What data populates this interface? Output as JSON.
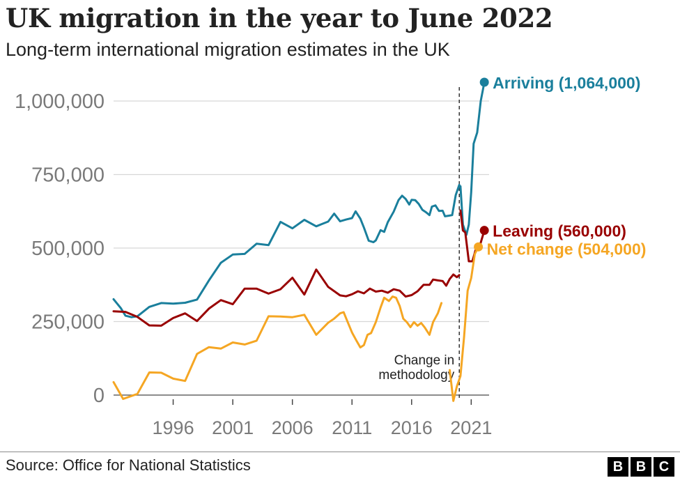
{
  "header": {
    "title": "UK migration in the year to June 2022",
    "subtitle": "Long-term international migration estimates in the UK"
  },
  "footer": {
    "source": "Source: Office for National Statistics",
    "logo_letters": [
      "B",
      "B",
      "C"
    ]
  },
  "chart_data": {
    "type": "line",
    "title": "UK migration in the year to June 2022",
    "subtitle": "Long-term international migration estimates in the UK",
    "xlabel": "",
    "ylabel": "",
    "xlim": [
      1991,
      2022.5
    ],
    "ylim": [
      -60000,
      1064000
    ],
    "grid": true,
    "y_ticks": [
      0,
      250000,
      500000,
      750000,
      1000000
    ],
    "y_tick_labels": [
      "0",
      "250,000",
      "500,000",
      "750,000",
      "1,000,000"
    ],
    "x_ticks": [
      1996,
      2001,
      2006,
      2011,
      2016,
      2021
    ],
    "x_tick_labels": [
      "1996",
      "2001",
      "2006",
      "2011",
      "2016",
      "2021"
    ],
    "annotation": {
      "text_lines": [
        "Change in",
        "methodology"
      ],
      "x": 2020.0
    },
    "series": [
      {
        "name": "Arriving",
        "label": "Arriving (1,064,000)",
        "color": "#1a7f9c",
        "segments": [
          [
            [
              1991,
              326000
            ],
            [
              1991.6,
              296000
            ],
            [
              1992,
              270000
            ],
            [
              1992.5,
              265000
            ],
            [
              1993,
              268000
            ],
            [
              1994,
              300000
            ],
            [
              1995,
              313000
            ],
            [
              1996,
              311000
            ],
            [
              1997,
              314000
            ],
            [
              1998,
              325000
            ],
            [
              1999,
              390000
            ],
            [
              2000,
              450000
            ],
            [
              2001,
              478000
            ],
            [
              2002,
              480000
            ],
            [
              2003,
              515000
            ],
            [
              2004,
              510000
            ],
            [
              2005,
              589000
            ],
            [
              2006,
              567000
            ],
            [
              2007,
              596000
            ],
            [
              2008,
              574000
            ],
            [
              2008.5,
              582000
            ],
            [
              2009,
              590000
            ],
            [
              2009.5,
              617000
            ],
            [
              2010,
              591000
            ],
            [
              2010.5,
              597000
            ],
            [
              2011,
              602000
            ],
            [
              2011.3,
              625000
            ],
            [
              2011.7,
              600000
            ],
            [
              2012,
              570000
            ],
            [
              2012.4,
              525000
            ],
            [
              2012.8,
              520000
            ],
            [
              2013,
              526000
            ],
            [
              2013.4,
              561000
            ],
            [
              2013.7,
              555000
            ],
            [
              2014,
              588000
            ],
            [
              2014.5,
              624000
            ],
            [
              2014.9,
              663000
            ],
            [
              2015.2,
              678000
            ],
            [
              2015.5,
              667000
            ],
            [
              2015.8,
              648000
            ],
            [
              2016,
              664000
            ],
            [
              2016.3,
              663000
            ],
            [
              2016.6,
              650000
            ],
            [
              2016.9,
              630000
            ],
            [
              2017.2,
              622000
            ],
            [
              2017.5,
              612000
            ],
            [
              2017.7,
              641000
            ],
            [
              2018,
              645000
            ],
            [
              2018.3,
              626000
            ],
            [
              2018.6,
              627000
            ],
            [
              2018.8,
              608000
            ],
            [
              2019.1,
              610000
            ],
            [
              2019.4,
              612000
            ],
            [
              2019.7,
              680000
            ],
            [
              2020,
              715000
            ]
          ],
          [
            [
              2020.1,
              710000
            ],
            [
              2020.3,
              580000
            ],
            [
              2020.6,
              545000
            ],
            [
              2020.8,
              580000
            ],
            [
              2021,
              690000
            ],
            [
              2021.2,
              855000
            ],
            [
              2021.5,
              893000
            ],
            [
              2021.8,
              1000000
            ],
            [
              2022.1,
              1064000
            ]
          ]
        ]
      },
      {
        "name": "Leaving",
        "label": "Leaving (560,000)",
        "color": "#990000",
        "segments": [
          [
            [
              1991,
              285000
            ],
            [
              1992,
              283000
            ],
            [
              1993,
              266000
            ],
            [
              1994,
              237000
            ],
            [
              1995,
              236000
            ],
            [
              1996,
              262000
            ],
            [
              1997,
              278000
            ],
            [
              1998,
              252000
            ],
            [
              1999,
              294000
            ],
            [
              2000,
              323000
            ],
            [
              2001,
              309000
            ],
            [
              2002,
              362000
            ],
            [
              2003,
              362000
            ],
            [
              2004,
              345000
            ],
            [
              2005,
              360000
            ],
            [
              2006,
              399000
            ],
            [
              2007,
              342000
            ],
            [
              2008,
              427000
            ],
            [
              2009,
              368000
            ],
            [
              2010,
              339000
            ],
            [
              2010.5,
              336000
            ],
            [
              2011,
              343000
            ],
            [
              2011.5,
              353000
            ],
            [
              2012,
              346000
            ],
            [
              2012.5,
              362000
            ],
            [
              2013,
              352000
            ],
            [
              2013.5,
              355000
            ],
            [
              2014,
              348000
            ],
            [
              2014.5,
              360000
            ],
            [
              2015,
              355000
            ],
            [
              2015.5,
              335000
            ],
            [
              2016,
              340000
            ],
            [
              2016.5,
              353000
            ],
            [
              2017,
              375000
            ],
            [
              2017.5,
              375000
            ],
            [
              2017.8,
              393000
            ],
            [
              2018.2,
              390000
            ],
            [
              2018.6,
              388000
            ],
            [
              2018.9,
              372000
            ],
            [
              2019.2,
              395000
            ],
            [
              2019.5,
              410000
            ],
            [
              2019.8,
              401000
            ],
            [
              2020,
              408000
            ]
          ],
          [
            [
              2020.1,
              628000
            ],
            [
              2020.3,
              560000
            ],
            [
              2020.5,
              553000
            ],
            [
              2020.8,
              455000
            ],
            [
              2021.1,
              455000
            ],
            [
              2021.4,
              498000
            ],
            [
              2021.7,
              505000
            ],
            [
              2022.1,
              560000
            ]
          ]
        ]
      },
      {
        "name": "Net change",
        "label": "Net change (504,000)",
        "color": "#f5a623",
        "segments": [
          [
            [
              1991,
              44000
            ],
            [
              1991.8,
              -13000
            ],
            [
              1993,
              4000
            ],
            [
              1994,
              77000
            ],
            [
              1995,
              76000
            ],
            [
              1996,
              56000
            ],
            [
              1997,
              48000
            ],
            [
              1998,
              140000
            ],
            [
              1999,
              163000
            ],
            [
              2000,
              158000
            ],
            [
              2001,
              179000
            ],
            [
              2002,
              172000
            ],
            [
              2003,
              185000
            ],
            [
              2004,
              268000
            ],
            [
              2005,
              267000
            ],
            [
              2006,
              265000
            ],
            [
              2007,
              273000
            ],
            [
              2008,
              205000
            ],
            [
              2009,
              246000
            ],
            [
              2009.5,
              260000
            ],
            [
              2010,
              278000
            ],
            [
              2010.3,
              282000
            ],
            [
              2010.6,
              252000
            ],
            [
              2011,
              213000
            ],
            [
              2011.4,
              183000
            ],
            [
              2011.7,
              162000
            ],
            [
              2012,
              170000
            ],
            [
              2012.3,
              205000
            ],
            [
              2012.6,
              211000
            ],
            [
              2013,
              248000
            ],
            [
              2013.4,
              298000
            ],
            [
              2013.7,
              331000
            ],
            [
              2014.1,
              320000
            ],
            [
              2014.4,
              335000
            ],
            [
              2014.7,
              331000
            ],
            [
              2015,
              303000
            ],
            [
              2015.3,
              260000
            ],
            [
              2015.6,
              248000
            ],
            [
              2015.9,
              231000
            ],
            [
              2016.2,
              248000
            ],
            [
              2016.5,
              236000
            ],
            [
              2016.8,
              245000
            ],
            [
              2017.1,
              230000
            ],
            [
              2017.5,
              205000
            ],
            [
              2017.8,
              248000
            ],
            [
              2018.2,
              278000
            ],
            [
              2018.5,
              313000
            ]
          ],
          [
            [
              2019.2,
              85000
            ],
            [
              2019.5,
              -20000
            ],
            [
              2019.8,
              30000
            ],
            [
              2020.1,
              65000
            ],
            [
              2020.4,
              198000
            ],
            [
              2020.7,
              355000
            ],
            [
              2021,
              398000
            ],
            [
              2021.3,
              480000
            ],
            [
              2021.6,
              504000
            ]
          ]
        ]
      }
    ]
  }
}
